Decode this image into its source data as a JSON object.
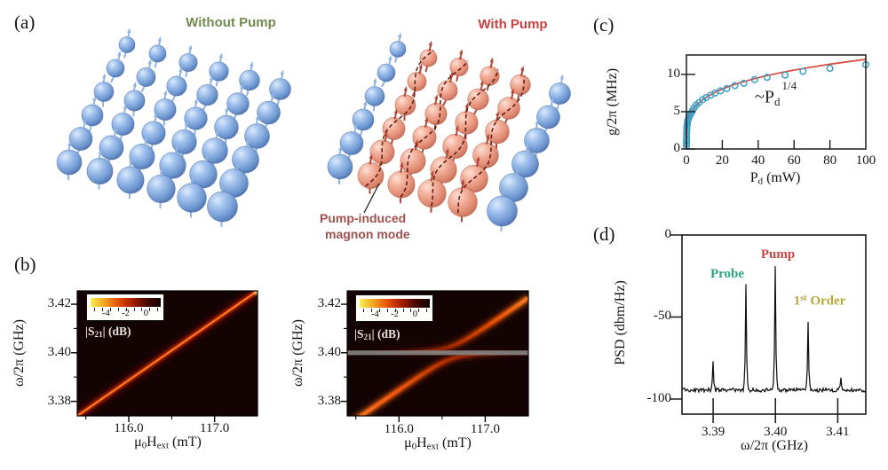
{
  "panel_labels": {
    "a": "(a)",
    "b": "(b)",
    "c": "(c)",
    "d": "(d)"
  },
  "panel_a": {
    "left_title": "Without Pump",
    "right_title": "With Pump",
    "annotation": {
      "line1": "Pump-induced",
      "line2": "magnon mode"
    },
    "colors": {
      "left_title": "#72894f",
      "right_title": "#c74140",
      "annotation": "#a2504e",
      "blue_sphere": "#7aa3d9",
      "pink_sphere": "#efa08c",
      "wave_line": "#5a1410"
    }
  },
  "panel_b": {
    "ylabel": "ω/2π (GHz)",
    "xlabel": {
      "mu": "μ",
      "sub0": "0",
      "H": "H",
      "subext": "ext",
      "unit": " (mT)"
    },
    "colorbar": {
      "prefix": "|S",
      "sub": "21",
      "suffix": "| (dB)",
      "tick_labels": [
        "-4",
        "-2",
        "0"
      ]
    },
    "y_tick_labels": [
      "3.42",
      "3.40",
      "3.38"
    ],
    "x_tick_labels": [
      "116.0",
      "117.0"
    ]
  },
  "panel_c": {
    "ylabel": "g/2π (MHz)",
    "xlabel": {
      "P": "P",
      "sub": "d",
      "unit": " (mW)"
    },
    "annotation": {
      "base": "~P",
      "sub": "d",
      "sup": "1/4"
    },
    "y_tick_labels": [
      "10",
      "5",
      "0"
    ],
    "x_tick_labels": [
      "0",
      "20",
      "40",
      "60",
      "80",
      "100"
    ]
  },
  "panel_d": {
    "ylabel": "PSD (dbm/Hz)",
    "xlabel": "ω/2π  (GHz)",
    "y_tick_labels": [
      "0",
      "-50",
      "-100"
    ],
    "x_tick_labels": [
      "3.39",
      "3.40",
      "3.41"
    ],
    "peak_labels": {
      "probe": "Probe",
      "pump": "Pump",
      "first_prefix": "1",
      "first_sup": "st",
      "first_rest": " Order"
    },
    "peak_label_colors": {
      "probe": "#2ea287",
      "pump": "#cc4343",
      "first": "#b5a93c"
    }
  },
  "chart_data": [
    {
      "id": "b_left",
      "type": "heatmap",
      "title": "transmission without pump",
      "xlabel": "u0 Hext (mT)",
      "ylabel": "w/2pi (GHz)",
      "xlim": [
        115.4,
        117.5
      ],
      "ylim": [
        3.374,
        3.4255
      ],
      "x_ticks": [
        116.0,
        117.0
      ],
      "x_minor_ticks": [
        115.5,
        116.5
      ],
      "y_ticks": [
        3.38,
        3.4,
        3.42
      ],
      "y_minor_ticks": [
        3.39,
        3.41
      ],
      "colorbar": {
        "label": "|S21| (dB)",
        "ticks": [
          -4,
          -2,
          0
        ],
        "range": [
          -5,
          0
        ]
      },
      "resonance_line": {
        "from": [
          115.4,
          3.374
        ],
        "to": [
          117.5,
          3.4255
        ]
      },
      "background": "#140303"
    },
    {
      "id": "b_right",
      "type": "heatmap",
      "title": "transmission with pump (avoided crossing)",
      "xlabel": "u0 Hext (mT)",
      "ylabel": "w/2pi (GHz)",
      "xlim": [
        115.4,
        117.5
      ],
      "ylim": [
        3.374,
        3.4255
      ],
      "x_ticks": [
        116.0,
        117.0
      ],
      "x_minor_ticks": [
        115.5,
        116.5
      ],
      "y_ticks": [
        3.38,
        3.4,
        3.42
      ],
      "y_minor_ticks": [
        3.39,
        3.41
      ],
      "colorbar": {
        "label": "|S21| (dB)",
        "ticks": [
          -4,
          -2,
          0
        ],
        "range": [
          -5,
          0
        ]
      },
      "coupling": {
        "pump_freq_GHz": 3.4,
        "crossing_field_mT": 116.6,
        "slope_GHz_per_mT": 0.0248,
        "g_GHz": 0.0026
      },
      "gray_band_freq_GHz": 3.4,
      "background": "#140303"
    },
    {
      "id": "c",
      "type": "scatter",
      "xlabel": "Pd (mW)",
      "ylabel": "g/2pi (MHz)",
      "xlim": [
        0,
        100
      ],
      "ylim": [
        0,
        12.6
      ],
      "x_ticks": [
        0,
        20,
        40,
        60,
        80,
        100
      ],
      "y_ticks": [
        0,
        5,
        10
      ],
      "annotation": "~Pd^1/4",
      "points": [
        [
          0.01,
          0.4
        ],
        [
          0.02,
          0.7
        ],
        [
          0.03,
          1.0
        ],
        [
          0.05,
          1.3
        ],
        [
          0.08,
          1.7
        ],
        [
          0.12,
          2.1
        ],
        [
          0.18,
          2.5
        ],
        [
          0.25,
          2.8
        ],
        [
          0.35,
          3.1
        ],
        [
          0.5,
          3.4
        ],
        [
          0.7,
          3.7
        ],
        [
          0.9,
          3.9
        ],
        [
          1.2,
          4.1
        ],
        [
          1.6,
          4.35
        ],
        [
          2.0,
          4.55
        ],
        [
          2.6,
          4.8
        ],
        [
          3.3,
          5.1
        ],
        [
          4.2,
          5.5
        ],
        [
          5.5,
          5.9
        ],
        [
          7,
          6.2
        ],
        [
          9,
          6.6
        ],
        [
          11,
          6.9
        ],
        [
          13.5,
          7.2
        ],
        [
          16,
          7.5
        ],
        [
          19,
          7.8
        ],
        [
          22.5,
          8.1
        ],
        [
          27,
          8.5
        ],
        [
          32,
          8.8
        ],
        [
          38,
          9.3
        ],
        [
          45,
          9.6
        ],
        [
          55,
          9.9
        ],
        [
          65,
          10.4
        ],
        [
          80,
          10.8
        ],
        [
          100,
          11.3
        ]
      ],
      "fit": {
        "formula": "g = a * Pd^0.25",
        "a": 3.8,
        "exponent": 0.25,
        "color": "#d6473f"
      },
      "point_color": "#3f9fc4"
    },
    {
      "id": "d",
      "type": "line",
      "xlabel": "w/2pi (GHz)",
      "ylabel": "PSD (dbm/Hz)",
      "xlim": [
        3.385,
        3.4145
      ],
      "ylim": [
        -109.2,
        0
      ],
      "x_ticks": [
        3.39,
        3.4,
        3.41
      ],
      "y_ticks": [
        0,
        -50,
        -100
      ],
      "baseline_dbm": -94.5,
      "noise_amp_db": 1.2,
      "peaks": [
        {
          "freq_GHz": 3.39,
          "psd_dbm": -77,
          "label": ""
        },
        {
          "freq_GHz": 3.3953,
          "psd_dbm": -30,
          "label": "Probe"
        },
        {
          "freq_GHz": 3.4,
          "psd_dbm": -19,
          "label": "Pump"
        },
        {
          "freq_GHz": 3.4052,
          "psd_dbm": -53,
          "label": "1st Order"
        },
        {
          "freq_GHz": 3.4105,
          "psd_dbm": -87,
          "label": ""
        }
      ],
      "trace_color": "#101010"
    }
  ]
}
